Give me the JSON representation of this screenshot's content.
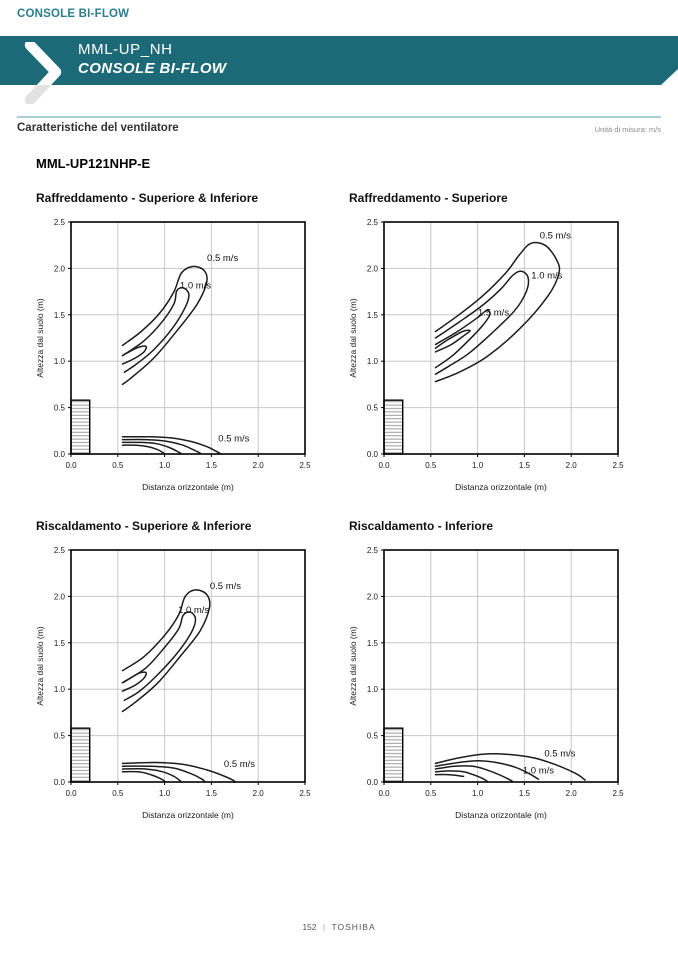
{
  "header": {
    "kicker": "CONSOLE BI-FLOW",
    "model": "MML-UP_NH",
    "series": "CONSOLE BI-FLOW"
  },
  "section": {
    "title": "Caratteristiche del ventilatore",
    "unit_note": "Unità di misura: m/s",
    "product_model": "MML-UP121NHP-E"
  },
  "footer": {
    "page_number": "152",
    "separator": "|",
    "brand": "TOSHIBA"
  },
  "palette": {
    "band_teal": "#1c6a78",
    "kicker_teal": "#2a7e8f",
    "rule_teal": "#abced4",
    "footer_separator_pink": "#d4909a",
    "contour_black": "#1c1c1c",
    "grid_gray": "#c8c8c8"
  },
  "chart_data": [
    {
      "type": "line",
      "variant": "contour",
      "title": "Raffreddamento - Superiore & Inferiore",
      "xlabel": "Distanza orizzontale (m)",
      "ylabel": "Altezza dal suolo (m)",
      "xlim": [
        0,
        2.5
      ],
      "ylim": [
        0,
        2.5
      ],
      "grid": true,
      "ticks": {
        "values": [
          0,
          0.5,
          1.0,
          1.5,
          2.0,
          2.5
        ],
        "labels": [
          "0.0",
          "0.5",
          "1.0",
          "1.5",
          "2.0",
          "2.5"
        ]
      },
      "unit_box": {
        "x0": 0,
        "y0": 0,
        "x1": 0.2,
        "y1": 0.58
      },
      "contours": [
        {
          "level": "0.5 m/s",
          "points": [
            [
              0.55,
              1.17
            ],
            [
              0.75,
              1.32
            ],
            [
              0.95,
              1.52
            ],
            [
              1.1,
              1.75
            ],
            [
              1.18,
              1.95
            ],
            [
              1.3,
              2.02
            ],
            [
              1.42,
              1.98
            ],
            [
              1.45,
              1.85
            ],
            [
              1.35,
              1.62
            ],
            [
              1.15,
              1.35
            ],
            [
              0.9,
              1.05
            ],
            [
              0.68,
              0.85
            ],
            [
              0.55,
              0.75
            ]
          ]
        },
        {
          "level": "1.0 m/s",
          "points": [
            [
              0.55,
              1.06
            ],
            [
              0.78,
              1.22
            ],
            [
              0.97,
              1.42
            ],
            [
              1.1,
              1.62
            ],
            [
              1.13,
              1.76
            ],
            [
              1.2,
              1.79
            ],
            [
              1.26,
              1.72
            ],
            [
              1.22,
              1.58
            ],
            [
              1.08,
              1.35
            ],
            [
              0.88,
              1.12
            ],
            [
              0.7,
              0.97
            ],
            [
              0.57,
              0.88
            ]
          ]
        },
        {
          "level": "",
          "points": [
            [
              0.55,
              0.97
            ],
            [
              0.68,
              1.03
            ],
            [
              0.78,
              1.1
            ],
            [
              0.8,
              1.16
            ],
            [
              0.72,
              1.15
            ],
            [
              0.62,
              1.1
            ],
            [
              0.55,
              1.06
            ]
          ]
        },
        {
          "level": "0.5 m/s",
          "points": [
            [
              0.55,
              0.185
            ],
            [
              0.85,
              0.185
            ],
            [
              1.1,
              0.17
            ],
            [
              1.3,
              0.13
            ],
            [
              1.45,
              0.08
            ],
            [
              1.55,
              0.03
            ],
            [
              1.6,
              0.0
            ]
          ]
        },
        {
          "level": "",
          "points": [
            [
              0.55,
              0.155
            ],
            [
              0.8,
              0.155
            ],
            [
              1.0,
              0.14
            ],
            [
              1.18,
              0.1
            ],
            [
              1.3,
              0.05
            ],
            [
              1.38,
              0.01
            ]
          ]
        },
        {
          "level": "",
          "points": [
            [
              0.55,
              0.125
            ],
            [
              0.75,
              0.125
            ],
            [
              0.92,
              0.11
            ],
            [
              1.05,
              0.07
            ],
            [
              1.15,
              0.02
            ],
            [
              1.18,
              0.0
            ]
          ]
        },
        {
          "level": "",
          "points": [
            [
              0.55,
              0.095
            ],
            [
              0.7,
              0.095
            ],
            [
              0.82,
              0.08
            ],
            [
              0.92,
              0.05
            ],
            [
              0.99,
              0.01
            ]
          ]
        }
      ],
      "labels": [
        {
          "text": "0.5 m/s",
          "x": 1.62,
          "y": 2.12
        },
        {
          "text": "1.0 m/s",
          "x": 1.33,
          "y": 1.82
        },
        {
          "text": "0.5 m/s",
          "x": 1.74,
          "y": 0.17
        }
      ]
    },
    {
      "type": "line",
      "variant": "contour",
      "title": "Raffreddamento - Superiore",
      "xlabel": "Distanza orizzontale (m)",
      "ylabel": "Altezza dal suolo (m)",
      "xlim": [
        0,
        2.5
      ],
      "ylim": [
        0,
        2.5
      ],
      "grid": true,
      "ticks": {
        "values": [
          0,
          0.5,
          1.0,
          1.5,
          2.0,
          2.5
        ],
        "labels": [
          "0.0",
          "0.5",
          "1.0",
          "1.5",
          "2.0",
          "2.5"
        ]
      },
      "unit_box": {
        "x0": 0,
        "y0": 0,
        "x1": 0.2,
        "y1": 0.58
      },
      "contours": [
        {
          "level": "0.5 m/s",
          "points": [
            [
              0.55,
              1.32
            ],
            [
              0.8,
              1.5
            ],
            [
              1.05,
              1.7
            ],
            [
              1.3,
              1.95
            ],
            [
              1.45,
              2.15
            ],
            [
              1.57,
              2.27
            ],
            [
              1.72,
              2.25
            ],
            [
              1.84,
              2.1
            ],
            [
              1.87,
              1.95
            ],
            [
              1.75,
              1.7
            ],
            [
              1.45,
              1.35
            ],
            [
              1.1,
              1.05
            ],
            [
              0.8,
              0.88
            ],
            [
              0.55,
              0.78
            ]
          ]
        },
        {
          "level": "1.0 m/s",
          "points": [
            [
              0.55,
              1.25
            ],
            [
              0.8,
              1.42
            ],
            [
              1.05,
              1.6
            ],
            [
              1.25,
              1.78
            ],
            [
              1.38,
              1.93
            ],
            [
              1.47,
              1.97
            ],
            [
              1.54,
              1.9
            ],
            [
              1.52,
              1.75
            ],
            [
              1.4,
              1.55
            ],
            [
              1.15,
              1.3
            ],
            [
              0.9,
              1.08
            ],
            [
              0.7,
              0.95
            ],
            [
              0.55,
              0.86
            ]
          ]
        },
        {
          "level": "1.5 m/s",
          "points": [
            [
              0.55,
              1.18
            ],
            [
              0.8,
              1.33
            ],
            [
              1.0,
              1.47
            ],
            [
              1.1,
              1.55
            ],
            [
              1.13,
              1.5
            ],
            [
              1.05,
              1.38
            ],
            [
              0.9,
              1.22
            ],
            [
              0.72,
              1.05
            ],
            [
              0.55,
              0.93
            ]
          ]
        },
        {
          "level": "",
          "points": [
            [
              0.55,
              1.1
            ],
            [
              0.72,
              1.18
            ],
            [
              0.86,
              1.28
            ],
            [
              0.92,
              1.33
            ],
            [
              0.84,
              1.32
            ],
            [
              0.68,
              1.23
            ],
            [
              0.55,
              1.14
            ]
          ]
        }
      ],
      "labels": [
        {
          "text": "0.5 m/s",
          "x": 1.83,
          "y": 2.36
        },
        {
          "text": "1.0 m/s",
          "x": 1.74,
          "y": 1.93
        },
        {
          "text": "1.5 m/s",
          "x": 1.17,
          "y": 1.53
        }
      ]
    },
    {
      "type": "line",
      "variant": "contour",
      "title": "Riscaldamento - Superiore & Inferiore",
      "xlabel": "Distanza orizzontale (m)",
      "ylabel": "Altezza dal suolo (m)",
      "xlim": [
        0,
        2.5
      ],
      "ylim": [
        0,
        2.5
      ],
      "grid": true,
      "ticks": {
        "values": [
          0,
          0.5,
          1.0,
          1.5,
          2.0,
          2.5
        ],
        "labels": [
          "0.0",
          "0.5",
          "1.0",
          "1.5",
          "2.0",
          "2.5"
        ]
      },
      "unit_box": {
        "x0": 0,
        "y0": 0,
        "x1": 0.2,
        "y1": 0.58
      },
      "contours": [
        {
          "level": "0.5 m/s",
          "points": [
            [
              0.55,
              1.2
            ],
            [
              0.78,
              1.35
            ],
            [
              1.0,
              1.58
            ],
            [
              1.15,
              1.8
            ],
            [
              1.22,
              2.0
            ],
            [
              1.33,
              2.07
            ],
            [
              1.45,
              2.02
            ],
            [
              1.48,
              1.88
            ],
            [
              1.38,
              1.63
            ],
            [
              1.18,
              1.37
            ],
            [
              0.93,
              1.07
            ],
            [
              0.7,
              0.87
            ],
            [
              0.55,
              0.76
            ]
          ]
        },
        {
          "level": "1.0 m/s",
          "points": [
            [
              0.55,
              1.07
            ],
            [
              0.8,
              1.23
            ],
            [
              1.0,
              1.45
            ],
            [
              1.15,
              1.65
            ],
            [
              1.2,
              1.8
            ],
            [
              1.28,
              1.83
            ],
            [
              1.33,
              1.75
            ],
            [
              1.28,
              1.6
            ],
            [
              1.12,
              1.37
            ],
            [
              0.9,
              1.13
            ],
            [
              0.72,
              0.97
            ],
            [
              0.57,
              0.88
            ]
          ]
        },
        {
          "level": "",
          "points": [
            [
              0.55,
              0.98
            ],
            [
              0.68,
              1.04
            ],
            [
              0.78,
              1.12
            ],
            [
              0.8,
              1.18
            ],
            [
              0.72,
              1.17
            ],
            [
              0.62,
              1.11
            ],
            [
              0.55,
              1.07
            ]
          ]
        },
        {
          "level": "0.5 m/s",
          "points": [
            [
              0.55,
              0.2
            ],
            [
              0.9,
              0.21
            ],
            [
              1.2,
              0.19
            ],
            [
              1.45,
              0.13
            ],
            [
              1.62,
              0.07
            ],
            [
              1.73,
              0.02
            ],
            [
              1.75,
              0.0
            ]
          ]
        },
        {
          "level": "",
          "points": [
            [
              0.55,
              0.17
            ],
            [
              0.85,
              0.17
            ],
            [
              1.1,
              0.15
            ],
            [
              1.28,
              0.09
            ],
            [
              1.4,
              0.03
            ],
            [
              1.43,
              0.0
            ]
          ]
        },
        {
          "level": "",
          "points": [
            [
              0.55,
              0.14
            ],
            [
              0.8,
              0.14
            ],
            [
              0.98,
              0.11
            ],
            [
              1.1,
              0.06
            ],
            [
              1.17,
              0.01
            ]
          ]
        },
        {
          "level": "",
          "points": [
            [
              0.55,
              0.11
            ],
            [
              0.72,
              0.11
            ],
            [
              0.85,
              0.08
            ],
            [
              0.95,
              0.04
            ],
            [
              1.0,
              0.01
            ]
          ]
        }
      ],
      "labels": [
        {
          "text": "0.5 m/s",
          "x": 1.65,
          "y": 2.12
        },
        {
          "text": "1.0 m/s",
          "x": 1.31,
          "y": 1.86
        },
        {
          "text": "0.5 m/s",
          "x": 1.8,
          "y": 0.2
        }
      ]
    },
    {
      "type": "line",
      "variant": "contour",
      "title": "Riscaldamento - Inferiore",
      "xlabel": "Distanza orizzontale (m)",
      "ylabel": "Altezza dal suolo (m)",
      "xlim": [
        0,
        2.5
      ],
      "ylim": [
        0,
        2.5
      ],
      "grid": true,
      "ticks": {
        "values": [
          0,
          0.5,
          1.0,
          1.5,
          2.0,
          2.5
        ],
        "labels": [
          "0.0",
          "0.5",
          "1.0",
          "1.5",
          "2.0",
          "2.5"
        ]
      },
      "unit_box": {
        "x0": 0,
        "y0": 0,
        "x1": 0.2,
        "y1": 0.58
      },
      "contours": [
        {
          "level": "0.5 m/s",
          "points": [
            [
              0.55,
              0.2
            ],
            [
              0.8,
              0.26
            ],
            [
              1.05,
              0.3
            ],
            [
              1.3,
              0.3
            ],
            [
              1.6,
              0.26
            ],
            [
              1.85,
              0.18
            ],
            [
              2.05,
              0.09
            ],
            [
              2.15,
              0.02
            ]
          ]
        },
        {
          "level": "1.0 m/s",
          "points": [
            [
              0.55,
              0.17
            ],
            [
              0.8,
              0.21
            ],
            [
              1.0,
              0.23
            ],
            [
              1.2,
              0.21
            ],
            [
              1.4,
              0.16
            ],
            [
              1.55,
              0.09
            ],
            [
              1.65,
              0.03
            ]
          ]
        },
        {
          "level": "",
          "points": [
            [
              0.55,
              0.14
            ],
            [
              0.75,
              0.17
            ],
            [
              0.95,
              0.17
            ],
            [
              1.1,
              0.13
            ],
            [
              1.25,
              0.07
            ],
            [
              1.37,
              0.01
            ]
          ]
        },
        {
          "level": "",
          "points": [
            [
              0.55,
              0.11
            ],
            [
              0.7,
              0.12
            ],
            [
              0.85,
              0.11
            ],
            [
              0.95,
              0.08
            ],
            [
              1.05,
              0.04
            ],
            [
              1.1,
              0.01
            ]
          ]
        },
        {
          "level": "",
          "points": [
            [
              0.55,
              0.08
            ],
            [
              0.68,
              0.08
            ],
            [
              0.78,
              0.07
            ],
            [
              0.85,
              0.06
            ]
          ]
        }
      ],
      "labels": [
        {
          "text": "0.5 m/s",
          "x": 1.88,
          "y": 0.31
        },
        {
          "text": "1.0 m/s",
          "x": 1.65,
          "y": 0.13
        }
      ]
    }
  ]
}
